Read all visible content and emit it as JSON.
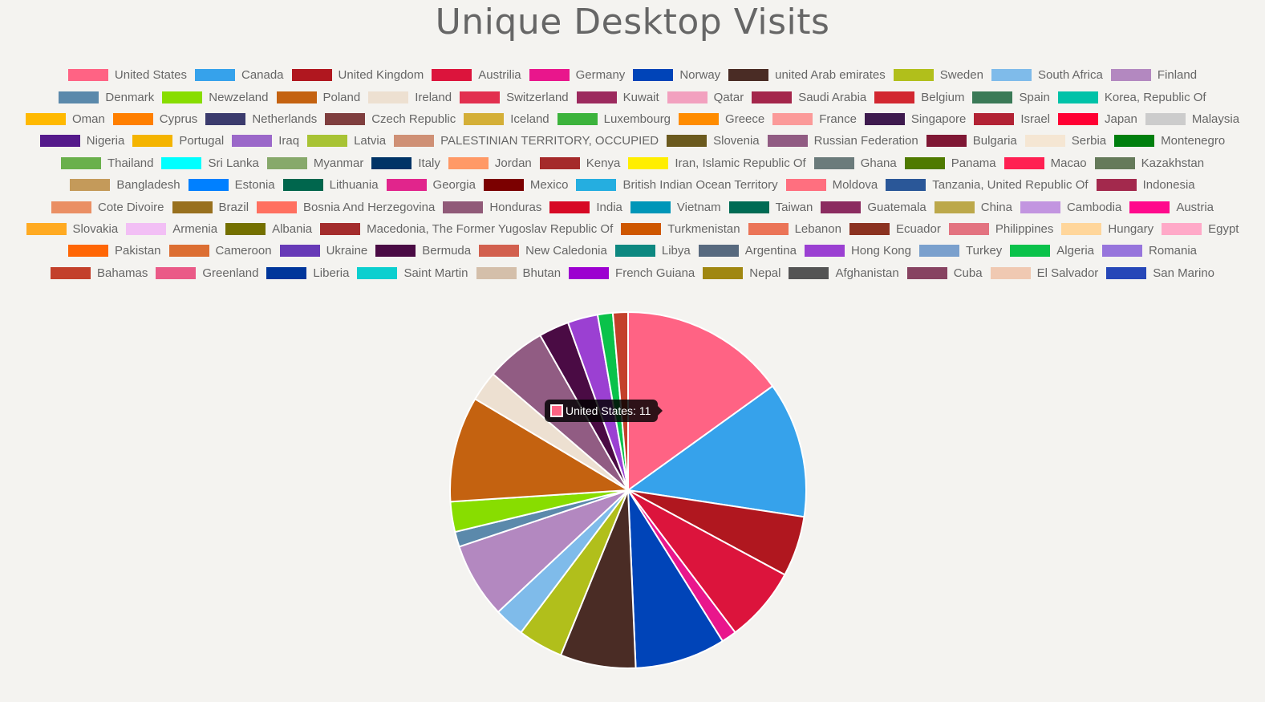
{
  "chart_data": {
    "type": "pie",
    "title": "Unique Desktop Visits",
    "legend_position": "top",
    "categories": [
      "United States",
      "Canada",
      "United Kingdom",
      "Austrilia",
      "Germany",
      "Norway",
      "united Arab emirates",
      "Sweden",
      "South Africa",
      "Finland",
      "Denmark",
      "Newzeland",
      "Poland",
      "Ireland",
      "Switzerland",
      "Kuwait",
      "Qatar",
      "Saudi Arabia",
      "Belgium",
      "Spain",
      "Korea, Republic Of",
      "Oman",
      "Cyprus",
      "Netherlands",
      "Czech Republic",
      "Iceland",
      "Luxembourg",
      "Greece",
      "France",
      "Singapore",
      "Israel",
      "Japan",
      "Malaysia",
      "Nigeria",
      "Portugal",
      "Iraq",
      "Latvia",
      "PALESTINIAN TERRITORY, OCCUPIED",
      "Slovenia",
      "Russian Federation",
      "Bulgaria",
      "Serbia",
      "Montenegro",
      "Thailand",
      "Sri Lanka",
      "Myanmar",
      "Italy",
      "Jordan",
      "Kenya",
      "Iran, Islamic Republic Of",
      "Ghana",
      "Panama",
      "Macao",
      "Kazakhstan",
      "Bangladesh",
      "Estonia",
      "Lithuania",
      "Georgia",
      "Mexico",
      "British Indian Ocean Territory",
      "Moldova",
      "Tanzania, United Republic Of",
      "Indonesia",
      "Cote Divoire",
      "Brazil",
      "Bosnia And Herzegovina",
      "Honduras",
      "India",
      "Vietnam",
      "Taiwan",
      "Guatemala",
      "China",
      "Cambodia",
      "Austria",
      "Slovakia",
      "Armenia",
      "Albania",
      "Macedonia, The Former Yugoslav Republic Of",
      "Turkmenistan",
      "Lebanon",
      "Ecuador",
      "Philippines",
      "Hungary",
      "Egypt",
      "Pakistan",
      "Cameroon",
      "Ukraine",
      "Bermuda",
      "New Caledonia",
      "Libya",
      "Argentina",
      "Hong Kong",
      "Turkey",
      "Algeria",
      "Romania",
      "Bahamas",
      "Greenland",
      "Liberia",
      "Saint Martin",
      "Bhutan",
      "French Guiana",
      "Nepal",
      "Afghanistan",
      "Cuba",
      "El Salvador",
      "San Marino"
    ],
    "colors": [
      "#ff6384",
      "#36a2eb",
      "#b0171f",
      "#dc143c",
      "#e9168c",
      "#0044b8",
      "#4a2c25",
      "#b1bf1b",
      "#7fbbea",
      "#b388c0",
      "#5b89ab",
      "#88dd00",
      "#c46210",
      "#ede0d1",
      "#e2304f",
      "#9c2a5e",
      "#f2a1bf",
      "#a4264b",
      "#d22730",
      "#3b7a57",
      "#00c2a8",
      "#ffb901",
      "#ff7f00",
      "#3b3b6d",
      "#7f3e3e",
      "#d4af37",
      "#3cb33c",
      "#ff8c00",
      "#fb9a99",
      "#3e1a4e",
      "#b22234",
      "#ff0033",
      "#cccccc",
      "#551a8b",
      "#f4b400",
      "#9b68c9",
      "#a8c334",
      "#cf9075",
      "#6b5a1e",
      "#915c83",
      "#7f1734",
      "#f5e6d3",
      "#007f0e",
      "#6ab04c",
      "#00ffff",
      "#87a96b",
      "#003366",
      "#ff9966",
      "#a52a2a",
      "#ffee00",
      "#6b7b7b",
      "#4f7a00",
      "#ff2052",
      "#657a5a",
      "#c49a5a",
      "#0080ff",
      "#00664d",
      "#e1258c",
      "#7b0000",
      "#25aee0",
      "#ff6f7f",
      "#2a5798",
      "#a3294d",
      "#ea8f64",
      "#98701e",
      "#ff7060",
      "#905a78",
      "#d70a25",
      "#0096b8",
      "#006b54",
      "#8b2c60",
      "#bca84a",
      "#c295e0",
      "#ff0a8c",
      "#ffaa22",
      "#f2bff5",
      "#747000",
      "#a32c2c",
      "#ce5700",
      "#eb7457",
      "#8b3220",
      "#e37380",
      "#ffd69b",
      "#ffa9c8",
      "#ff6605",
      "#dc6e32",
      "#673ab7",
      "#4a0b44",
      "#d2604e",
      "#0d8880",
      "#586a7f",
      "#9b40d2",
      "#7aa0cd",
      "#0ac24a",
      "#9775dc",
      "#c3402b",
      "#ea5a87",
      "#00369b",
      "#0bcfcf",
      "#d4bfaa",
      "#9c00d0",
      "#a08711",
      "#545454",
      "#874361",
      "#f0c9b2",
      "#2647b8"
    ],
    "values": [
      11,
      9,
      4,
      5,
      1,
      6,
      5,
      3,
      2,
      5,
      1,
      2,
      7,
      2,
      0,
      0,
      0,
      0,
      0,
      0,
      0,
      0,
      0,
      0,
      0,
      0,
      0,
      0,
      0,
      0,
      0,
      0,
      0,
      0,
      0,
      0,
      0,
      0,
      0,
      4,
      0,
      0,
      0,
      0,
      0,
      0,
      0,
      0,
      0,
      0,
      0,
      0,
      0,
      0,
      0,
      0,
      0,
      0,
      0,
      0,
      0,
      0,
      0,
      0,
      0,
      0,
      0,
      0,
      0,
      0,
      0,
      0,
      0,
      0,
      0,
      0,
      0,
      0,
      0,
      0,
      0,
      0,
      0,
      0,
      0,
      0,
      0,
      2,
      0,
      0,
      0,
      2,
      0,
      1,
      0,
      1,
      0,
      0,
      0,
      0,
      0,
      0,
      0,
      0,
      0,
      0
    ]
  },
  "tooltip": {
    "text": "United States: 11",
    "color": "#ff6384"
  }
}
